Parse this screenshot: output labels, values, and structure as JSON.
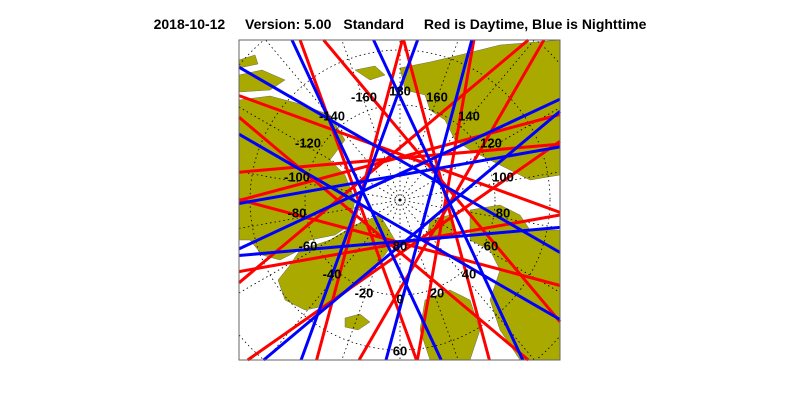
{
  "header": {
    "date": "2018-10-12",
    "version": "Version: 5.00",
    "mode": "Standard",
    "legend_text": "Red is Daytime, Blue is Nighttime"
  },
  "map": {
    "projection": "north polar stereographic",
    "colors": {
      "land": "#a9a900",
      "day": "#ff0000",
      "night": "#0000ff",
      "water": "#ffffff",
      "grid": "#000000"
    },
    "longitude_labels": [
      "180",
      "160",
      "140",
      "120",
      "100",
      "80",
      "60",
      "40",
      "20",
      "0",
      "-20",
      "-40",
      "-60",
      "-80",
      "-100",
      "-120",
      "-140",
      "-160"
    ],
    "latitude_labels": [
      "80",
      "60"
    ]
  }
}
